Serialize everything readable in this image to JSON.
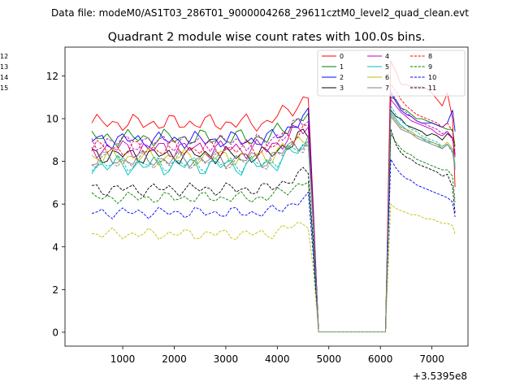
{
  "header": {
    "suptitle": "Data file: modeM0/AS1T03_286T01_9000004268_29611cztM0_level2_quad_clean.evt"
  },
  "chart_data": {
    "type": "line",
    "title": "Quadrant 2 module wise count rates with 100.0s bins.",
    "xlabel": "",
    "ylabel": "",
    "x_offset_label": "+3.5395e8",
    "xlim": [
      -120,
      7700
    ],
    "ylim": [
      -0.65,
      13.35
    ],
    "xticks": [
      1000,
      2000,
      3000,
      4000,
      5000,
      6000,
      7000
    ],
    "xtick_labels": [
      "1000",
      "2000",
      "3000",
      "4000",
      "5000",
      "6000",
      "7000"
    ],
    "yticks": [
      0,
      2,
      4,
      6,
      8,
      10,
      12
    ],
    "ytick_labels": [
      "0",
      "2",
      "4",
      "6",
      "8",
      "10",
      "12"
    ],
    "grid": false,
    "legend_position": "top-right",
    "segments": {
      "seg1": {
        "x_start": 400,
        "step": 100,
        "count": 43
      },
      "drop_x": [
        4700
      ],
      "gap_x": [
        4800,
        4900,
        5000,
        5100,
        5200,
        5300,
        5400,
        5500,
        5600,
        5700,
        5800,
        5900,
        6000,
        6100
      ],
      "seg2_x": [
        6200,
        6300,
        6400,
        6500,
        6600,
        6700,
        6800,
        6900,
        7000,
        7100,
        7200,
        7300,
        7400,
        7450
      ]
    },
    "series": [
      {
        "name": "0",
        "color": "#ff0000",
        "style": "solid",
        "base": 9.8,
        "amp": 0.45,
        "drop": 5.8,
        "seg2": [
          12.7,
          12.2,
          11.6,
          11.6,
          11.5,
          11.5,
          11.5,
          11.4,
          11.2,
          10.9,
          10.6,
          11.2,
          10.0,
          6.8
        ]
      },
      {
        "name": "1",
        "color": "#008000",
        "style": "solid",
        "base": 9.1,
        "amp": 0.45,
        "drop": 5.5,
        "seg2": [
          11.0,
          10.9,
          10.5,
          10.4,
          10.2,
          10.0,
          10.0,
          9.9,
          9.8,
          9.7,
          9.6,
          9.5,
          9.5,
          8.7
        ]
      },
      {
        "name": "2",
        "color": "#0000ff",
        "style": "solid",
        "base": 9.0,
        "amp": 0.45,
        "drop": 5.5,
        "seg2": [
          11.2,
          10.8,
          10.4,
          10.2,
          10.1,
          9.9,
          9.8,
          9.8,
          9.8,
          9.7,
          9.6,
          9.8,
          10.4,
          9.4
        ]
      },
      {
        "name": "3",
        "color": "#000000",
        "style": "solid",
        "base": 8.3,
        "amp": 0.45,
        "drop": 5.0,
        "seg2": [
          10.4,
          10.1,
          10.0,
          9.7,
          9.6,
          9.5,
          9.4,
          9.2,
          9.3,
          9.2,
          9.0,
          9.3,
          9.1,
          8.3
        ]
      },
      {
        "name": "4",
        "color": "#bf00bf",
        "style": "solid",
        "base": 8.6,
        "amp": 0.5,
        "drop": 5.2,
        "seg2": [
          10.9,
          10.6,
          10.3,
          10.1,
          9.9,
          9.8,
          9.7,
          9.6,
          9.5,
          9.3,
          9.2,
          9.4,
          9.1,
          8.2
        ]
      },
      {
        "name": "5",
        "color": "#00bfbf",
        "style": "solid",
        "base": 7.8,
        "amp": 0.5,
        "drop": 4.9,
        "seg2": [
          10.3,
          10.0,
          9.7,
          9.5,
          9.4,
          9.2,
          9.1,
          8.9,
          8.9,
          8.8,
          8.6,
          8.8,
          8.5,
          7.6
        ]
      },
      {
        "name": "6",
        "color": "#bfbf00",
        "style": "solid",
        "base": 8.2,
        "amp": 0.45,
        "drop": 5.0,
        "seg2": [
          10.2,
          9.9,
          9.6,
          9.5,
          9.4,
          9.2,
          9.1,
          9.0,
          8.9,
          8.8,
          8.7,
          8.9,
          8.6,
          7.9
        ]
      },
      {
        "name": "7",
        "color": "#808080",
        "style": "solid",
        "base": 8.1,
        "amp": 0.45,
        "drop": 4.9,
        "seg2": [
          10.1,
          9.8,
          9.5,
          9.4,
          9.3,
          9.1,
          9.0,
          8.9,
          8.8,
          8.7,
          8.6,
          8.8,
          8.5,
          7.8
        ]
      },
      {
        "name": "8",
        "color": "#ff0000",
        "style": "dashed",
        "base": 8.6,
        "amp": 0.45,
        "drop": 5.3,
        "seg2": [
          11.6,
          11.3,
          10.9,
          10.6,
          10.4,
          10.2,
          10.1,
          10.0,
          9.9,
          9.8,
          9.6,
          9.8,
          9.4,
          8.4
        ]
      },
      {
        "name": "9",
        "color": "#008000",
        "style": "dashed",
        "base": 6.3,
        "amp": 0.3,
        "drop": 4.0,
        "seg2": [
          9.3,
          8.9,
          8.6,
          8.4,
          8.3,
          8.1,
          8.0,
          7.9,
          7.8,
          7.7,
          7.6,
          7.6,
          7.3,
          6.1
        ]
      },
      {
        "name": "10",
        "color": "#0000ff",
        "style": "dashed",
        "base": 5.6,
        "amp": 0.3,
        "drop": 3.5,
        "seg2": [
          8.1,
          7.7,
          7.4,
          7.2,
          7.1,
          6.9,
          6.8,
          6.7,
          6.6,
          6.5,
          6.4,
          6.3,
          6.1,
          5.4
        ]
      },
      {
        "name": "11",
        "color": "#000000",
        "style": "dashed",
        "base": 6.7,
        "amp": 0.35,
        "drop": 4.2,
        "seg2": [
          9.5,
          8.8,
          8.4,
          8.2,
          8.1,
          7.9,
          7.8,
          7.7,
          7.6,
          7.5,
          7.3,
          7.4,
          6.8,
          5.6
        ]
      },
      {
        "name": "12",
        "color": "#bf00bf",
        "style": "dashed",
        "base": 8.9,
        "amp": 0.45,
        "drop": 5.4,
        "seg2": [
          11.3,
          10.9,
          10.5,
          10.3,
          10.1,
          9.9,
          9.8,
          9.7,
          9.6,
          9.5,
          9.3,
          9.4,
          9.0,
          8.3
        ]
      },
      {
        "name": "13",
        "color": "#00bfbf",
        "style": "dashed",
        "base": 7.9,
        "amp": 0.45,
        "drop": 4.9,
        "seg2": [
          10.6,
          10.2,
          9.9,
          9.7,
          9.5,
          9.4,
          9.2,
          9.1,
          9.0,
          8.9,
          8.7,
          8.8,
          8.5,
          7.7
        ]
      },
      {
        "name": "14",
        "color": "#bfbf00",
        "style": "dashed",
        "base": 4.6,
        "amp": 0.3,
        "drop": 2.9,
        "seg2": [
          6.0,
          5.8,
          5.7,
          5.6,
          5.5,
          5.5,
          5.4,
          5.3,
          5.3,
          5.2,
          5.1,
          5.1,
          5.0,
          4.6
        ]
      },
      {
        "name": "15",
        "color": "#808080",
        "style": "dashed",
        "base": 8.0,
        "amp": 0.45,
        "drop": 4.9,
        "seg2": [
          10.2,
          9.9,
          9.6,
          9.5,
          9.3,
          9.2,
          9.1,
          9.0,
          8.9,
          8.8,
          8.6,
          8.8,
          8.4,
          7.7
        ]
      }
    ]
  }
}
